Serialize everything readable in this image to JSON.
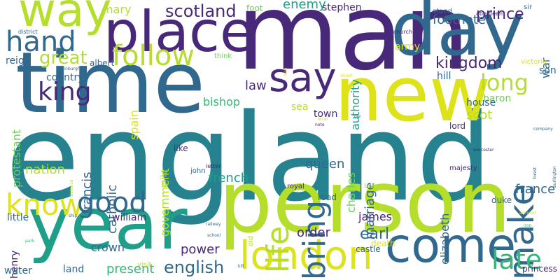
{
  "palette": {
    "navy": "#482878",
    "blue": "#31688e",
    "teal": "#26828e",
    "green": "#35b779",
    "lime": "#b5de2b",
    "yellow": "#dde318",
    "seafoam": "#1f9e89",
    "mint": "#6ece58"
  },
  "words": [
    {
      "text": "england",
      "color": "#26828e"
    },
    {
      "text": "man",
      "color": "#482878"
    },
    {
      "text": "time",
      "color": "#31688e"
    },
    {
      "text": "person",
      "color": "#b5de2b"
    },
    {
      "text": "day",
      "color": "#31688e"
    },
    {
      "text": "new",
      "color": "#dde318"
    },
    {
      "text": "place",
      "color": "#482878"
    },
    {
      "text": "year",
      "color": "#1f9e89"
    },
    {
      "text": "way",
      "color": "#b5de2b"
    },
    {
      "text": "come",
      "color": "#31688e"
    },
    {
      "text": "london",
      "color": "#dde318"
    },
    {
      "text": "make",
      "color": "#31688e"
    },
    {
      "text": "say",
      "color": "#482878"
    },
    {
      "text": "hand",
      "color": "#31688e"
    },
    {
      "text": "follow",
      "color": "#b5de2b"
    },
    {
      "text": "life",
      "color": "#b5de2b"
    },
    {
      "text": "bring",
      "color": "#31688e"
    },
    {
      "text": "know",
      "color": "#dde318"
    },
    {
      "text": "good",
      "color": "#31688e"
    },
    {
      "text": "king",
      "color": "#482878"
    },
    {
      "text": "late",
      "color": "#35b779"
    },
    {
      "text": "scotland",
      "color": "#482878"
    },
    {
      "text": "great",
      "color": "#b5de2b"
    },
    {
      "text": "long",
      "color": "#b5de2b"
    },
    {
      "text": "english",
      "color": "#31688e"
    },
    {
      "text": "kingdom",
      "color": "#482878"
    },
    {
      "text": "prince",
      "color": "#482878"
    },
    {
      "text": "footnote",
      "color": "#31688e"
    },
    {
      "text": "queen",
      "color": "#31688e"
    },
    {
      "text": "french",
      "color": "#1f9e89"
    },
    {
      "text": "nation",
      "color": "#b5de2b"
    },
    {
      "text": "government",
      "color": "#b5de2b"
    },
    {
      "text": "francis",
      "color": "#31688e"
    },
    {
      "text": "catholic",
      "color": "#31688e"
    },
    {
      "text": "marriage",
      "color": "#31688e"
    },
    {
      "text": "charles",
      "color": "#6ece58"
    },
    {
      "text": "elizabeth",
      "color": "#31688e"
    },
    {
      "text": "authority",
      "color": "#1f9e89"
    },
    {
      "text": "protestant",
      "color": "#6ece58"
    },
    {
      "text": "power",
      "color": "#482878"
    },
    {
      "text": "present",
      "color": "#35b779"
    },
    {
      "text": "order",
      "color": "#482878"
    },
    {
      "text": "earl",
      "color": "#31688e"
    },
    {
      "text": "james",
      "color": "#482878"
    },
    {
      "text": "france",
      "color": "#31688e"
    },
    {
      "text": "law",
      "color": "#482878"
    },
    {
      "text": "enemy",
      "color": "#1f9e89"
    },
    {
      "text": "mary",
      "color": "#b5de2b"
    },
    {
      "text": "spain",
      "color": "#dde318"
    },
    {
      "text": "scot",
      "color": "#b5de2b"
    },
    {
      "text": "bishop",
      "color": "#35b779"
    },
    {
      "text": "crown",
      "color": "#31688e"
    },
    {
      "text": "henry",
      "color": "#482878"
    },
    {
      "text": "william",
      "color": "#482878"
    },
    {
      "text": "army",
      "color": "#dde318"
    },
    {
      "text": "baron",
      "color": "#6ece58"
    },
    {
      "text": "house",
      "color": "#31688e"
    },
    {
      "text": "stephen",
      "color": "#482878"
    },
    {
      "text": "son",
      "color": "#31688e"
    },
    {
      "text": "water",
      "color": "#31688e"
    },
    {
      "text": "land",
      "color": "#31688e"
    },
    {
      "text": "little",
      "color": "#31688e"
    },
    {
      "text": "country",
      "color": "#31688e"
    },
    {
      "text": "reign",
      "color": "#31688e"
    },
    {
      "text": "town",
      "color": "#482878"
    },
    {
      "text": "castle",
      "color": "#31688e"
    },
    {
      "text": "death",
      "color": "#dde318"
    },
    {
      "text": "war",
      "color": "#31688e"
    },
    {
      "text": "hill",
      "color": "#31688e"
    },
    {
      "text": "sea",
      "color": "#b5de2b"
    },
    {
      "text": "foot",
      "color": "#6ece58"
    },
    {
      "text": "stand",
      "color": "#31688e"
    },
    {
      "text": "road",
      "color": "#31688e"
    },
    {
      "text": "duke",
      "color": "#31688e"
    },
    {
      "text": "lord",
      "color": "#482878"
    },
    {
      "text": "like",
      "color": "#482878"
    },
    {
      "text": "mile",
      "color": "#b5de2b"
    },
    {
      "text": "majesty",
      "color": "#482878"
    },
    {
      "text": "princess",
      "color": "#482878"
    },
    {
      "text": "albert",
      "color": "#31688e"
    },
    {
      "text": "sir",
      "color": "#31688e"
    },
    {
      "text": "aberdeen",
      "color": "#482878"
    },
    {
      "text": "victoria",
      "color": "#dde318"
    },
    {
      "text": "church",
      "color": "#482878"
    },
    {
      "text": "think",
      "color": "#6ece58"
    },
    {
      "text": "district",
      "color": "#31688e"
    },
    {
      "text": "edinburgh",
      "color": "#31688e"
    },
    {
      "text": "john",
      "color": "#31688e"
    },
    {
      "text": "letter",
      "color": "#482878"
    },
    {
      "text": "royal",
      "color": "#482878"
    },
    {
      "text": "lady",
      "color": "#b5de2b"
    },
    {
      "text": "old",
      "color": "#b5de2b"
    },
    {
      "text": "railway",
      "color": "#31688e"
    },
    {
      "text": "school",
      "color": "#31688e"
    },
    {
      "text": "visit",
      "color": "#b5de2b"
    },
    {
      "text": "local",
      "color": "#b5de2b"
    },
    {
      "text": "die",
      "color": "#31688e"
    },
    {
      "text": "company",
      "color": "#31688e"
    },
    {
      "text": "forest",
      "color": "#31688e"
    },
    {
      "text": "burlington",
      "color": "#31688e"
    },
    {
      "text": "iron",
      "color": "#35b779"
    },
    {
      "text": "park",
      "color": "#35b779"
    },
    {
      "text": "street",
      "color": "#dde318"
    },
    {
      "text": "ship",
      "color": "#31688e"
    },
    {
      "text": "tale",
      "color": "#dde318"
    },
    {
      "text": "account",
      "color": "#dde318"
    },
    {
      "text": "kill",
      "color": "#31688e"
    },
    {
      "text": "distance",
      "color": "#b5de2b"
    },
    {
      "text": "worcester",
      "color": "#482878"
    },
    {
      "text": "note",
      "color": "#482878"
    }
  ]
}
